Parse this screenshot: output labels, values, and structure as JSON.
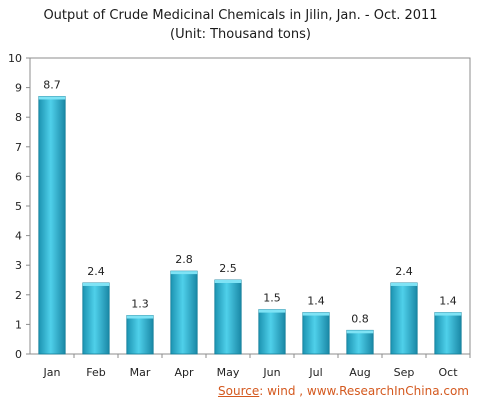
{
  "chart_data": {
    "type": "bar",
    "title": "Output of Crude Medicinal Chemicals in Jilin, Jan. - Oct. 2011",
    "subtitle": "(Unit: Thousand tons)",
    "categories": [
      "Jan",
      "Feb",
      "Mar",
      "Apr",
      "May",
      "Jun",
      "Jul",
      "Aug",
      "Sep",
      "Oct"
    ],
    "values": [
      8.7,
      2.4,
      1.3,
      2.8,
      2.5,
      1.5,
      1.4,
      0.8,
      2.4,
      1.4
    ],
    "data_labels": [
      "8.7",
      "2.4",
      "1.3",
      "2.8",
      "2.5",
      "1.5",
      "1.4",
      "0.8",
      "2.4",
      "1.4"
    ],
    "y_ticks": [
      0,
      1,
      2,
      3,
      4,
      5,
      6,
      7,
      8,
      9,
      10
    ],
    "ylim": [
      0,
      10
    ],
    "xlabel": "",
    "ylabel": "",
    "grid": false,
    "legend": "none",
    "bar_color": "#2bb3d2",
    "bar_color_dark": "#137d98"
  },
  "source": {
    "key": "Source",
    "text": ": wind , www.ResearchInChina.com"
  }
}
